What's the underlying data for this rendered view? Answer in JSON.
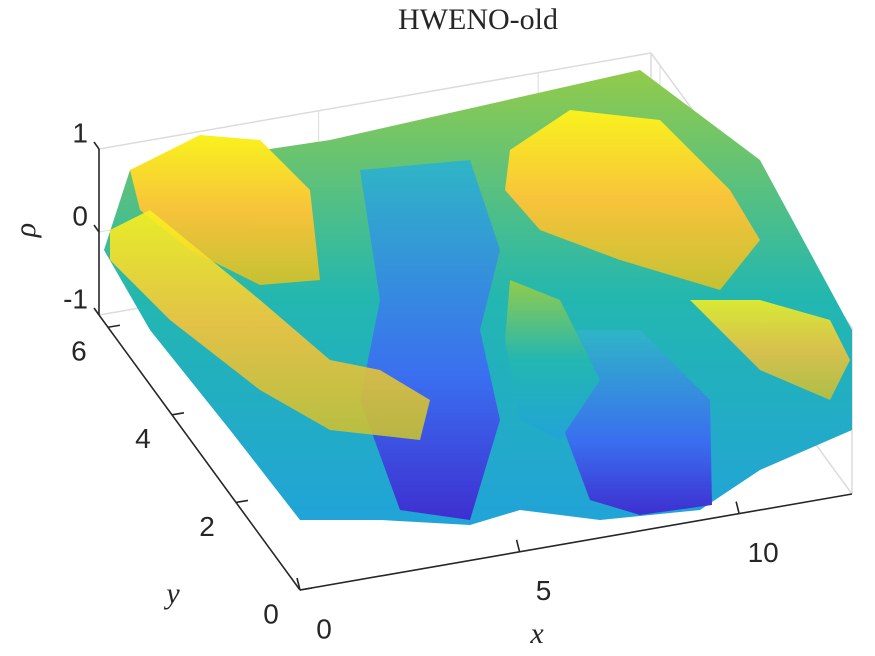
{
  "chart_data": {
    "type": "surface3d",
    "title": "HWENO-old",
    "xlabel": "x",
    "ylabel": "y",
    "zlabel": "ρ",
    "xlim": [
      0,
      12.57
    ],
    "ylim": [
      0,
      6.28
    ],
    "zlim": [
      -1,
      1
    ],
    "xticks": [
      0,
      5,
      10
    ],
    "yticks": [
      0,
      2,
      4,
      6
    ],
    "zticks": [
      -1,
      0,
      1
    ],
    "grid": true
  }
}
